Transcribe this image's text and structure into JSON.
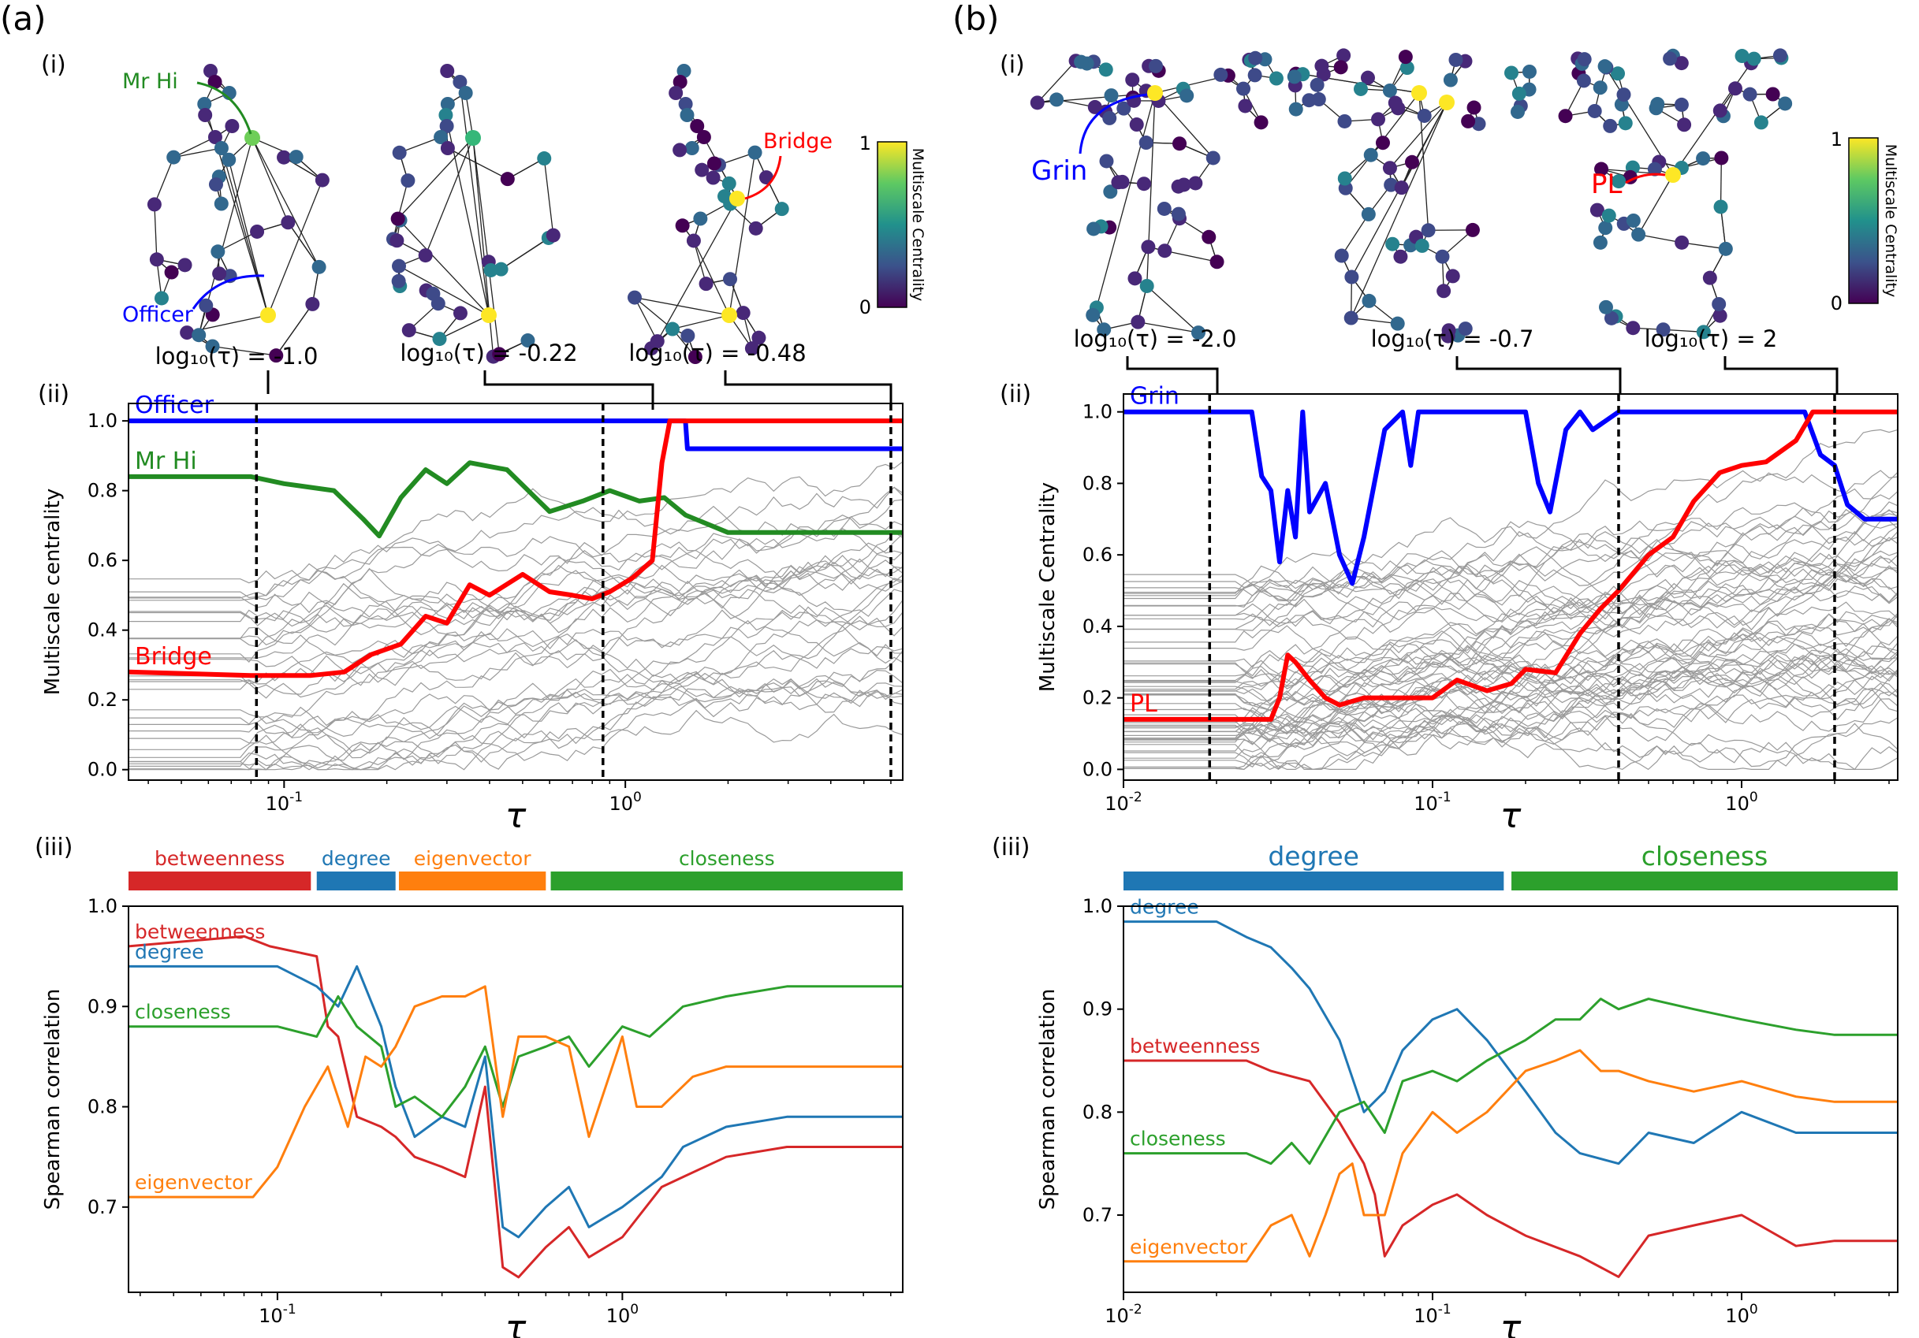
{
  "panels": [
    {
      "label": "(a)",
      "sub_i": "(i)",
      "sub_ii": "(ii)",
      "sub_iii": "(iii)",
      "networks": [
        {
          "tau_label": "log₁₀(τ) = -1.0",
          "annotations": [
            {
              "name": "Mr Hi",
              "color": "#228b22"
            },
            {
              "name": "Officer",
              "color": "#0000ff"
            }
          ]
        },
        {
          "tau_label": "log₁₀(τ) = -0.22",
          "annotations": []
        },
        {
          "tau_label": "log₁₀(τ) = -0.48",
          "annotations": [
            {
              "name": "Bridge",
              "color": "#ff0000"
            }
          ]
        }
      ],
      "colorbar": {
        "label": "Multiscale Centrality",
        "min": "0",
        "max": "1"
      }
    },
    {
      "label": "(b)",
      "sub_i": "(i)",
      "sub_ii": "(ii)",
      "sub_iii": "(iii)",
      "networks": [
        {
          "tau_label": "log₁₀(τ) = -2.0",
          "annotations": [
            {
              "name": "Grin",
              "color": "#0000ff"
            }
          ]
        },
        {
          "tau_label": "log₁₀(τ) = -0.7",
          "annotations": []
        },
        {
          "tau_label": "log₁₀(τ) = 2",
          "annotations": [
            {
              "name": "PL",
              "color": "#ff0000"
            }
          ]
        }
      ],
      "colorbar": {
        "label": "Multiscale Centrality",
        "min": "0",
        "max": "1"
      }
    }
  ],
  "chart_data": [
    {
      "id": "a-ii",
      "type": "line",
      "xlabel": "τ",
      "ylabel": "Multiscale centrality",
      "xscale": "log",
      "xlim": [
        0.035,
        6.5
      ],
      "ylim": [
        -0.03,
        1.05
      ],
      "yticks": [
        "0.0",
        "0.2",
        "0.4",
        "0.6",
        "0.8",
        "1.0"
      ],
      "xticks": [
        "10⁻¹",
        "10⁰"
      ],
      "vlines": [
        0.083,
        0.86,
        6.0
      ],
      "background_series_count": 31,
      "series": [
        {
          "name": "Officer",
          "color": "#0000ff",
          "x": [
            0.035,
            1.5,
            1.52,
            6.5
          ],
          "y": [
            1.0,
            1.0,
            0.92,
            0.92
          ]
        },
        {
          "name": "Mr Hi",
          "color": "#228b22",
          "x": [
            0.035,
            0.08,
            0.1,
            0.14,
            0.17,
            0.19,
            0.22,
            0.26,
            0.3,
            0.35,
            0.45,
            0.6,
            0.75,
            0.9,
            1.1,
            1.3,
            1.5,
            2.0,
            6.5
          ],
          "y": [
            0.84,
            0.84,
            0.82,
            0.8,
            0.72,
            0.67,
            0.78,
            0.86,
            0.82,
            0.88,
            0.86,
            0.74,
            0.77,
            0.8,
            0.77,
            0.78,
            0.73,
            0.68,
            0.68
          ]
        },
        {
          "name": "Bridge",
          "color": "#ff0000",
          "x": [
            0.035,
            0.08,
            0.12,
            0.15,
            0.18,
            0.22,
            0.26,
            0.3,
            0.35,
            0.4,
            0.5,
            0.6,
            0.7,
            0.8,
            0.9,
            1.05,
            1.2,
            1.28,
            1.35,
            6.5
          ],
          "y": [
            0.28,
            0.27,
            0.27,
            0.28,
            0.33,
            0.36,
            0.44,
            0.42,
            0.53,
            0.5,
            0.56,
            0.51,
            0.5,
            0.49,
            0.51,
            0.55,
            0.6,
            0.88,
            1.0,
            1.0
          ]
        }
      ]
    },
    {
      "id": "b-ii",
      "type": "line",
      "xlabel": "τ",
      "ylabel": "Multiscale Centrality",
      "xscale": "log",
      "xlim": [
        0.01,
        3.2
      ],
      "ylim": [
        -0.03,
        1.05
      ],
      "yticks": [
        "0.0",
        "0.2",
        "0.4",
        "0.6",
        "0.8",
        "1.0"
      ],
      "xticks": [
        "10⁻²",
        "10⁻¹",
        "10⁰"
      ],
      "vlines": [
        0.019,
        0.4,
        2.0
      ],
      "background_series_count": 55,
      "series": [
        {
          "name": "Grin",
          "color": "#0000ff",
          "x": [
            0.01,
            0.026,
            0.028,
            0.03,
            0.032,
            0.034,
            0.036,
            0.038,
            0.04,
            0.045,
            0.05,
            0.055,
            0.06,
            0.07,
            0.08,
            0.085,
            0.09,
            0.1,
            0.12,
            0.15,
            0.2,
            0.22,
            0.24,
            0.27,
            0.3,
            0.33,
            0.4,
            0.5,
            1.0,
            1.6,
            1.8,
            2.0,
            2.2,
            2.5,
            3.2
          ],
          "y": [
            1.0,
            1.0,
            0.82,
            0.78,
            0.58,
            0.78,
            0.65,
            1.0,
            0.72,
            0.8,
            0.6,
            0.52,
            0.65,
            0.95,
            1.0,
            0.85,
            1.0,
            1.0,
            1.0,
            1.0,
            1.0,
            0.8,
            0.72,
            0.95,
            1.0,
            0.95,
            1.0,
            1.0,
            1.0,
            1.0,
            0.88,
            0.85,
            0.74,
            0.7,
            0.7
          ]
        },
        {
          "name": "PL",
          "color": "#ff0000",
          "x": [
            0.01,
            0.03,
            0.032,
            0.034,
            0.036,
            0.04,
            0.045,
            0.05,
            0.06,
            0.08,
            0.1,
            0.12,
            0.15,
            0.18,
            0.2,
            0.25,
            0.3,
            0.35,
            0.4,
            0.5,
            0.6,
            0.7,
            0.85,
            1.0,
            1.2,
            1.5,
            1.7,
            3.2
          ],
          "y": [
            0.14,
            0.14,
            0.2,
            0.32,
            0.3,
            0.25,
            0.2,
            0.18,
            0.2,
            0.2,
            0.2,
            0.25,
            0.22,
            0.24,
            0.28,
            0.27,
            0.38,
            0.45,
            0.5,
            0.6,
            0.65,
            0.75,
            0.83,
            0.85,
            0.86,
            0.92,
            1.0,
            1.0
          ]
        }
      ]
    },
    {
      "id": "a-iii",
      "type": "line",
      "xlabel": "τ",
      "ylabel": "Spearman correlation",
      "xscale": "log",
      "xlim": [
        0.037,
        6.5
      ],
      "ylim": [
        0.615,
        1.0
      ],
      "yticks": [
        "0.7",
        "0.8",
        "0.9",
        "1.0"
      ],
      "xticks": [
        "10⁻¹",
        "10⁰"
      ],
      "bar": [
        {
          "label": "betweenness",
          "color": "#d62728",
          "from": 0.037,
          "to": 0.125
        },
        {
          "label": "degree",
          "color": "#1f77b4",
          "from": 0.13,
          "to": 0.22
        },
        {
          "label": "eigenvector",
          "color": "#ff7f0e",
          "from": 0.225,
          "to": 0.6
        },
        {
          "label": "closeness",
          "color": "#2ca02c",
          "from": 0.62,
          "to": 6.5
        }
      ],
      "series": [
        {
          "name": "betweenness",
          "color": "#d62728",
          "x": [
            0.037,
            0.08,
            0.095,
            0.13,
            0.14,
            0.15,
            0.17,
            0.2,
            0.22,
            0.25,
            0.3,
            0.35,
            0.4,
            0.45,
            0.5,
            0.6,
            0.7,
            0.8,
            1.0,
            1.3,
            1.5,
            2.0,
            3.0,
            6.5
          ],
          "y": [
            0.96,
            0.97,
            0.96,
            0.95,
            0.88,
            0.87,
            0.79,
            0.78,
            0.77,
            0.75,
            0.74,
            0.73,
            0.82,
            0.64,
            0.63,
            0.66,
            0.68,
            0.65,
            0.67,
            0.72,
            0.73,
            0.75,
            0.76,
            0.76
          ]
        },
        {
          "name": "degree",
          "color": "#1f77b4",
          "x": [
            0.037,
            0.1,
            0.13,
            0.15,
            0.17,
            0.2,
            0.22,
            0.25,
            0.3,
            0.35,
            0.4,
            0.45,
            0.5,
            0.6,
            0.7,
            0.8,
            1.0,
            1.3,
            1.5,
            2.0,
            3.0,
            6.5
          ],
          "y": [
            0.94,
            0.94,
            0.92,
            0.9,
            0.94,
            0.88,
            0.82,
            0.77,
            0.79,
            0.78,
            0.85,
            0.68,
            0.67,
            0.7,
            0.72,
            0.68,
            0.7,
            0.73,
            0.76,
            0.78,
            0.79,
            0.79
          ]
        },
        {
          "name": "closeness",
          "color": "#2ca02c",
          "x": [
            0.037,
            0.1,
            0.13,
            0.15,
            0.17,
            0.2,
            0.22,
            0.25,
            0.3,
            0.35,
            0.4,
            0.45,
            0.5,
            0.6,
            0.7,
            0.8,
            1.0,
            1.2,
            1.5,
            2.0,
            3.0,
            6.5
          ],
          "y": [
            0.88,
            0.88,
            0.87,
            0.91,
            0.88,
            0.86,
            0.8,
            0.81,
            0.79,
            0.82,
            0.86,
            0.8,
            0.85,
            0.86,
            0.87,
            0.84,
            0.88,
            0.87,
            0.9,
            0.91,
            0.92,
            0.92
          ]
        },
        {
          "name": "eigenvector",
          "color": "#ff7f0e",
          "x": [
            0.037,
            0.085,
            0.1,
            0.12,
            0.14,
            0.16,
            0.18,
            0.2,
            0.22,
            0.25,
            0.3,
            0.35,
            0.4,
            0.45,
            0.5,
            0.6,
            0.7,
            0.8,
            1.0,
            1.1,
            1.3,
            1.6,
            2.0,
            3.0,
            6.5
          ],
          "y": [
            0.71,
            0.71,
            0.74,
            0.8,
            0.84,
            0.78,
            0.85,
            0.84,
            0.86,
            0.9,
            0.91,
            0.91,
            0.92,
            0.79,
            0.87,
            0.87,
            0.86,
            0.77,
            0.87,
            0.8,
            0.8,
            0.83,
            0.84,
            0.84,
            0.84
          ]
        }
      ]
    },
    {
      "id": "b-iii",
      "type": "line",
      "xlabel": "τ",
      "ylabel": "Spearman correlation",
      "xscale": "log",
      "xlim": [
        0.01,
        3.2
      ],
      "ylim": [
        0.625,
        1.0
      ],
      "yticks": [
        "0.7",
        "0.8",
        "0.9",
        "1.0"
      ],
      "xticks": [
        "10⁻²",
        "10⁻¹",
        "10⁰"
      ],
      "bar": [
        {
          "label": "degree",
          "color": "#1f77b4",
          "from": 0.01,
          "to": 0.17
        },
        {
          "label": "closeness",
          "color": "#2ca02c",
          "from": 0.18,
          "to": 3.2
        }
      ],
      "series": [
        {
          "name": "degree",
          "color": "#1f77b4",
          "x": [
            0.01,
            0.02,
            0.025,
            0.03,
            0.035,
            0.04,
            0.05,
            0.06,
            0.07,
            0.08,
            0.1,
            0.12,
            0.15,
            0.2,
            0.25,
            0.3,
            0.4,
            0.5,
            0.7,
            1.0,
            1.5,
            2.0,
            3.2
          ],
          "y": [
            0.985,
            0.985,
            0.97,
            0.96,
            0.94,
            0.92,
            0.87,
            0.8,
            0.82,
            0.86,
            0.89,
            0.9,
            0.87,
            0.82,
            0.78,
            0.76,
            0.75,
            0.78,
            0.77,
            0.8,
            0.78,
            0.78,
            0.78
          ]
        },
        {
          "name": "betweenness",
          "color": "#d62728",
          "x": [
            0.01,
            0.025,
            0.03,
            0.04,
            0.05,
            0.06,
            0.065,
            0.07,
            0.08,
            0.1,
            0.12,
            0.15,
            0.2,
            0.3,
            0.4,
            0.5,
            0.7,
            1.0,
            1.5,
            2.0,
            3.2
          ],
          "y": [
            0.85,
            0.85,
            0.84,
            0.83,
            0.79,
            0.75,
            0.72,
            0.66,
            0.69,
            0.71,
            0.72,
            0.7,
            0.68,
            0.66,
            0.64,
            0.68,
            0.69,
            0.7,
            0.67,
            0.675,
            0.675
          ]
        },
        {
          "name": "closeness",
          "color": "#2ca02c",
          "x": [
            0.01,
            0.025,
            0.03,
            0.035,
            0.04,
            0.05,
            0.06,
            0.07,
            0.08,
            0.1,
            0.12,
            0.15,
            0.2,
            0.25,
            0.3,
            0.35,
            0.4,
            0.5,
            0.7,
            1.0,
            1.5,
            2.0,
            3.2
          ],
          "y": [
            0.76,
            0.76,
            0.75,
            0.77,
            0.75,
            0.8,
            0.81,
            0.78,
            0.83,
            0.84,
            0.83,
            0.85,
            0.87,
            0.89,
            0.89,
            0.91,
            0.9,
            0.91,
            0.9,
            0.89,
            0.88,
            0.875,
            0.875
          ]
        },
        {
          "name": "eigenvector",
          "color": "#ff7f0e",
          "x": [
            0.01,
            0.025,
            0.03,
            0.035,
            0.04,
            0.045,
            0.05,
            0.055,
            0.06,
            0.07,
            0.08,
            0.1,
            0.12,
            0.15,
            0.2,
            0.25,
            0.3,
            0.35,
            0.4,
            0.5,
            0.7,
            1.0,
            1.5,
            2.0,
            3.2
          ],
          "y": [
            0.655,
            0.655,
            0.69,
            0.7,
            0.66,
            0.7,
            0.74,
            0.75,
            0.7,
            0.7,
            0.76,
            0.8,
            0.78,
            0.8,
            0.84,
            0.85,
            0.86,
            0.84,
            0.84,
            0.83,
            0.82,
            0.83,
            0.815,
            0.81,
            0.81
          ]
        }
      ]
    }
  ]
}
